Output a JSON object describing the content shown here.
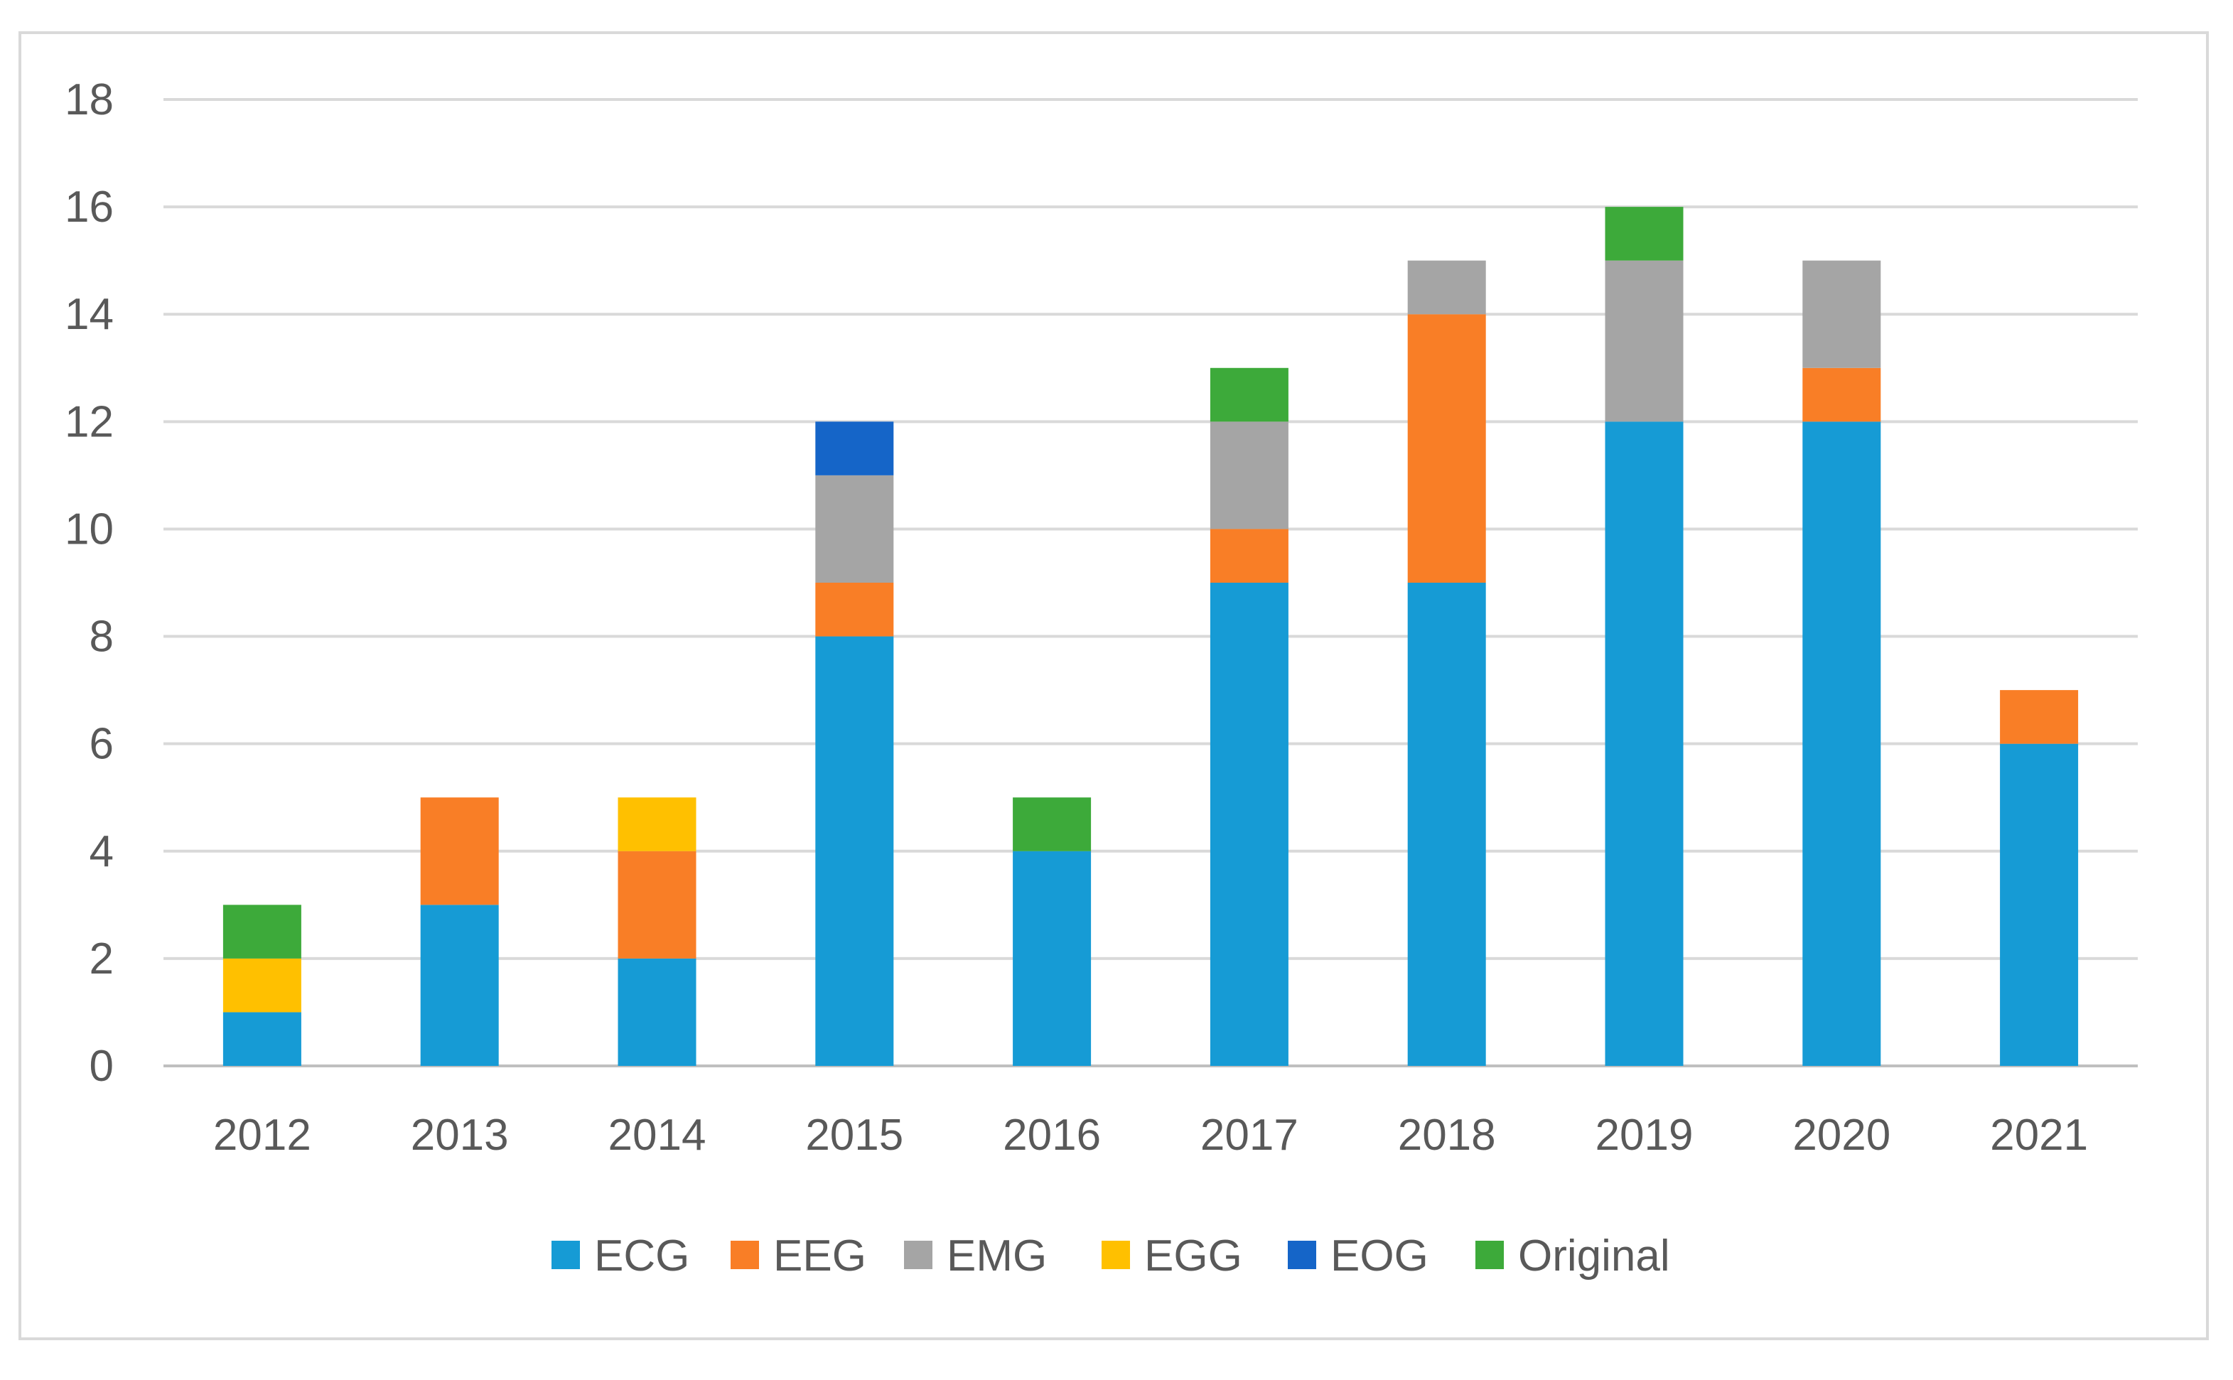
{
  "chart_data": {
    "type": "bar",
    "stacked": true,
    "title": "",
    "xlabel": "",
    "ylabel": "",
    "ylim": [
      0,
      18
    ],
    "yticks": [
      0,
      2,
      4,
      6,
      8,
      10,
      12,
      14,
      16,
      18
    ],
    "ytick_labels": [
      "0",
      "2",
      "4",
      "6",
      "8",
      "10",
      "12",
      "14",
      "16",
      "18"
    ],
    "grid": true,
    "legend_position": "bottom",
    "categories": [
      "2012",
      "2013",
      "2014",
      "2015",
      "2016",
      "2017",
      "2018",
      "2019",
      "2020",
      "2021"
    ],
    "series": [
      {
        "name": "ECG",
        "color": "#169BD5",
        "values": [
          1,
          3,
          2,
          8,
          4,
          9,
          9,
          12,
          12,
          6
        ]
      },
      {
        "name": "EEG",
        "color": "#F97E26",
        "values": [
          0,
          2,
          2,
          1,
          0,
          1,
          5,
          0,
          1,
          1
        ]
      },
      {
        "name": "EMG",
        "color": "#A5A5A5",
        "values": [
          0,
          0,
          0,
          2,
          0,
          2,
          1,
          3,
          2,
          0
        ]
      },
      {
        "name": "EGG",
        "color": "#FFC000",
        "values": [
          1,
          0,
          1,
          0,
          0,
          0,
          0,
          0,
          0,
          0
        ]
      },
      {
        "name": "EOG",
        "color": "#1565C8",
        "values": [
          0,
          0,
          0,
          1,
          0,
          0,
          0,
          0,
          0,
          0
        ]
      },
      {
        "name": "Original",
        "color": "#3DAA3A",
        "values": [
          1,
          0,
          0,
          0,
          1,
          1,
          0,
          1,
          0,
          0
        ]
      }
    ]
  }
}
